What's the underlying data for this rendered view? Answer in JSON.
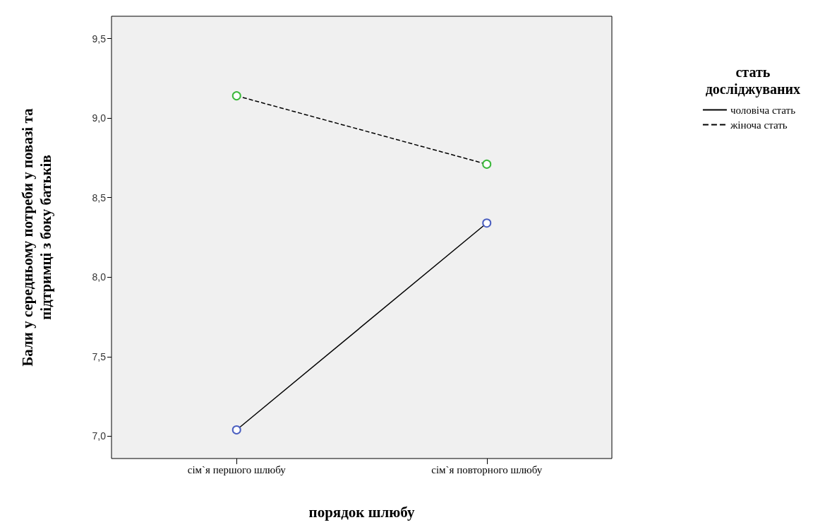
{
  "chart_data": {
    "type": "line",
    "xlabel": "порядок шлюбу",
    "ylabel": "Бали у середньому потреби у повазі та\nпідтримці з боку батьків",
    "legend_title": "стать\nдосліджуваних",
    "legend": "top right",
    "marker": "circle",
    "categories": [
      "сім`я першого шлюбу",
      "сім`я повторного шлюбу"
    ],
    "ylim": [
      6.86,
      9.64
    ],
    "yticks": [
      {
        "value": 7.0,
        "label": "7,0"
      },
      {
        "value": 7.5,
        "label": "7,5"
      },
      {
        "value": 8.0,
        "label": "8,0"
      },
      {
        "value": 8.5,
        "label": "8,5"
      },
      {
        "value": 9.0,
        "label": "9,0"
      },
      {
        "value": 9.5,
        "label": "9,5"
      }
    ],
    "series": [
      {
        "name": "чоловіча стать",
        "color": "#000000",
        "colors": [
          "#4b5fc0",
          "#4b5fc0"
        ],
        "line_style": "solid",
        "values": [
          7.04,
          8.34
        ]
      },
      {
        "name": "жіноча стать",
        "color": "#000000",
        "colors": [
          "#3cb83c",
          "#3cb83c"
        ],
        "line_style": "dashed",
        "values": [
          9.14,
          8.71
        ]
      }
    ]
  }
}
